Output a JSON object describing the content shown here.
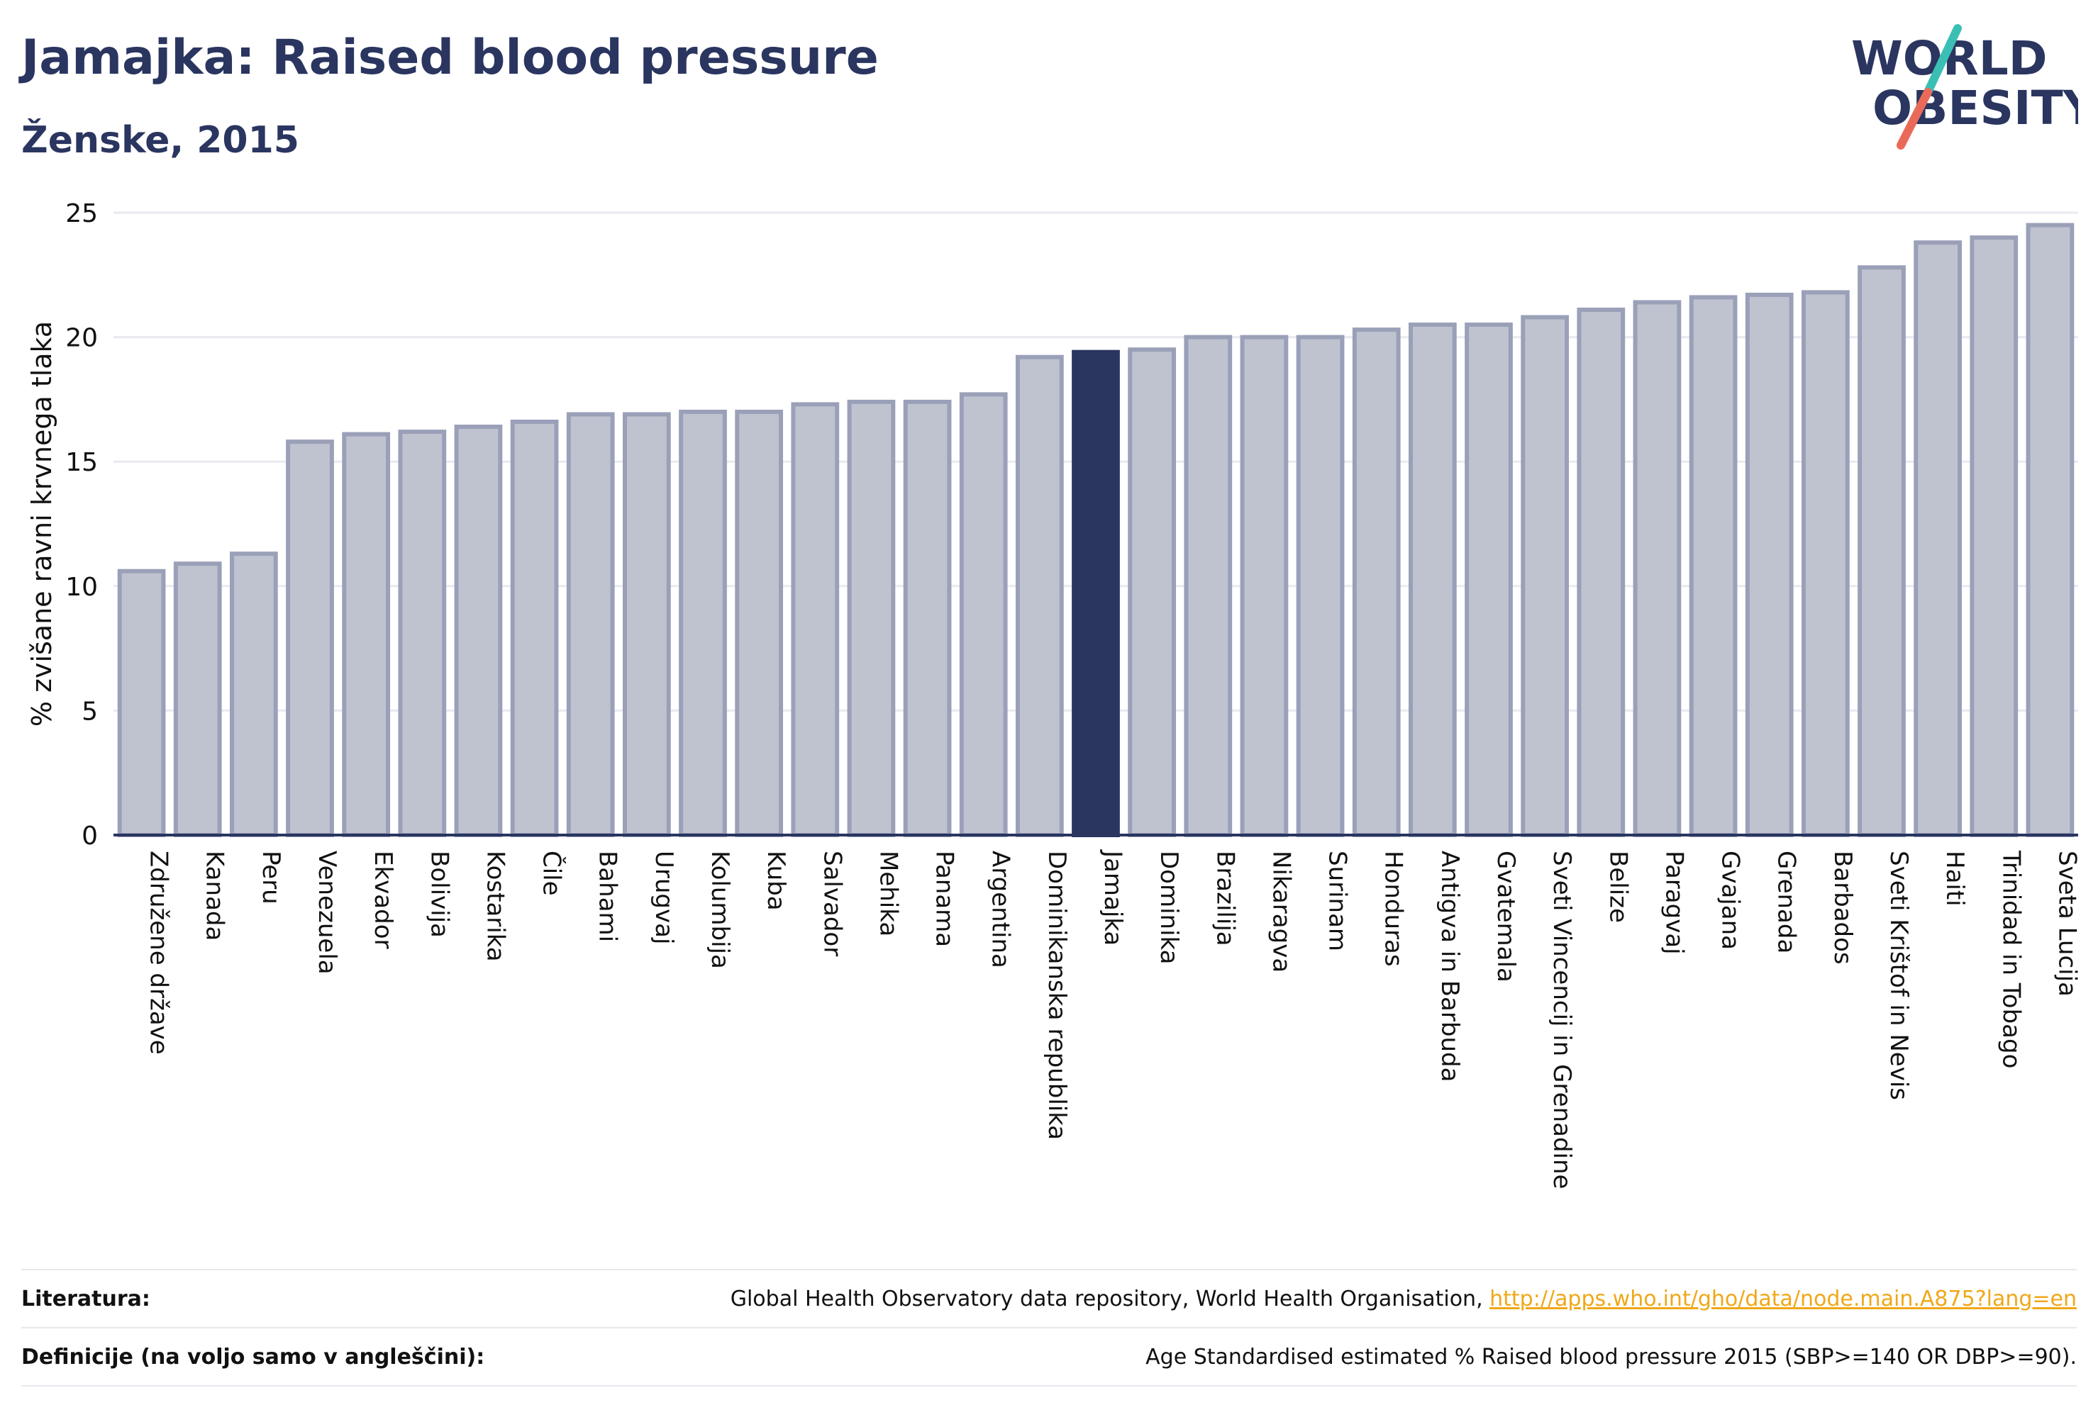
{
  "header": {
    "title": "Jamajka: Raised blood pressure",
    "subtitle": "Ženske, 2015"
  },
  "logo": {
    "line1": "WORLD",
    "line2": "OBESITY",
    "color_text": "#2a3560",
    "color_slash_top": "#3bbfb5",
    "color_slash_bottom": "#ea6a5a"
  },
  "chart_data": {
    "type": "bar",
    "title": "Jamajka: Raised blood pressure",
    "subtitle": "Ženske, 2015",
    "xlabel": "",
    "ylabel": "% zvišane ravni krvnega tlaka",
    "ylim": [
      0,
      25
    ],
    "yticks": [
      0,
      5,
      10,
      15,
      20,
      25
    ],
    "grid": true,
    "highlight": "Jamajka",
    "colors": {
      "bar_fill": "#bfc3d0",
      "bar_stroke": "#9aa0b8",
      "highlight_fill": "#2a3560",
      "axis": "#2a3560",
      "grid": "#e8eaf0"
    },
    "categories": [
      "Združene države",
      "Kanada",
      "Peru",
      "Venezuela",
      "Ekvador",
      "Bolivija",
      "Kostarika",
      "Čile",
      "Bahami",
      "Urugvaj",
      "Kolumbija",
      "Kuba",
      "Salvador",
      "Mehika",
      "Panama",
      "Argentina",
      "Dominikanska republika",
      "Jamajka",
      "Dominika",
      "Brazilija",
      "Nikaragva",
      "Surinam",
      "Honduras",
      "Antigva in Barbuda",
      "Gvatemala",
      "Sveti Vincencij in Grenadine",
      "Belize",
      "Paragvaj",
      "Gvajana",
      "Grenada",
      "Barbados",
      "Sveti Krištof in Nevis",
      "Haiti",
      "Trinidad in Tobago",
      "Sveta Lucija"
    ],
    "values": [
      10.6,
      10.9,
      11.3,
      15.8,
      16.1,
      16.2,
      16.4,
      16.6,
      16.9,
      16.9,
      17.0,
      17.0,
      17.3,
      17.4,
      17.4,
      17.7,
      19.2,
      19.4,
      19.5,
      20.0,
      20.0,
      20.0,
      20.3,
      20.5,
      20.5,
      20.8,
      21.1,
      21.4,
      21.6,
      21.7,
      21.8,
      22.8,
      23.8,
      24.0,
      24.5
    ]
  },
  "footer": {
    "references_label": "Literatura:",
    "references_text": "Global Health Observatory data repository, World Health Organisation, ",
    "references_link": "http://apps.who.int/gho/data/node.main.A875?lang=en",
    "definitions_label": "Definicije (na voljo samo v angleščini):",
    "definitions_text": "Age Standardised estimated % Raised blood pressure 2015 (SBP>=140 OR DBP>=90)."
  }
}
